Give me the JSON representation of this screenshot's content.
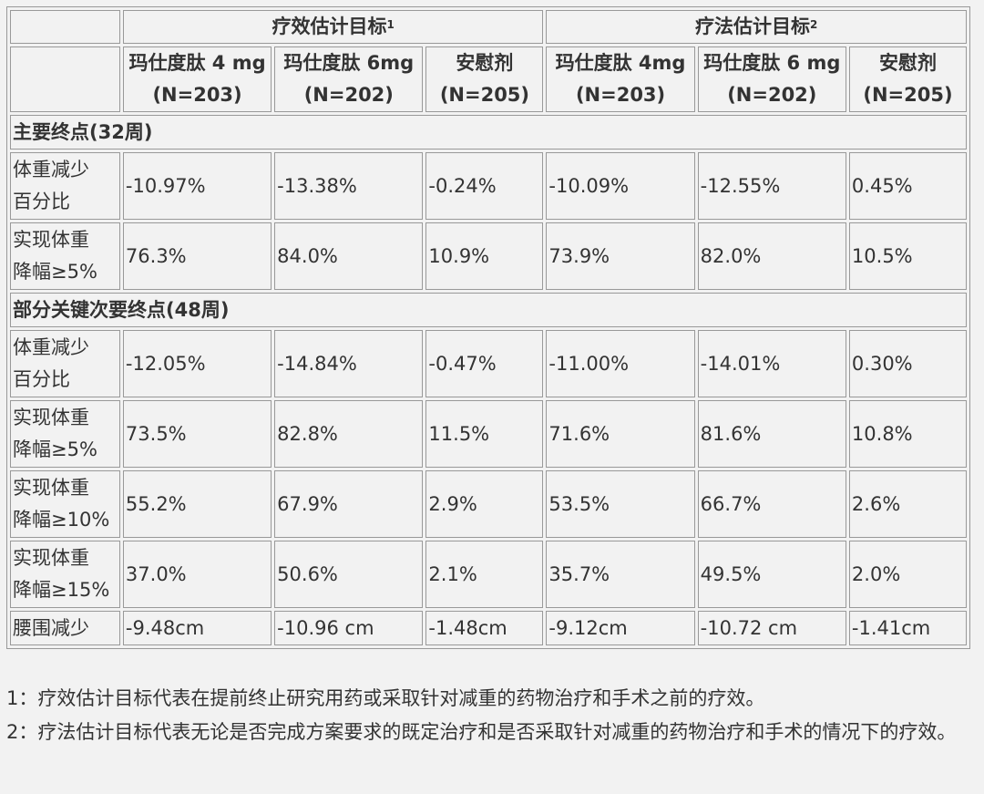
{
  "table": {
    "group_headers": [
      {
        "label": "疗效估计目标",
        "sup": "1"
      },
      {
        "label": "疗法估计目标",
        "sup": "2"
      }
    ],
    "column_headers": [
      {
        "line1": "玛仕度肽 4 mg",
        "line2": "(N=203)"
      },
      {
        "line1": "玛仕度肽 6mg",
        "line2": "(N=202)"
      },
      {
        "line1": "安慰剂",
        "line2": "(N=205)"
      },
      {
        "line1": "玛仕度肽 4mg",
        "line2": "(N=203)"
      },
      {
        "line1": "玛仕度肽 6 mg",
        "line2": "(N=202)"
      },
      {
        "line1": "安慰剂",
        "line2": "(N=205)"
      }
    ],
    "sections": [
      {
        "title": "主要终点(32周)",
        "rows": [
          {
            "label1": "体重减少",
            "label2": "百分比",
            "values": [
              "-10.97%",
              "-13.38%",
              "-0.24%",
              "-10.09%",
              "-12.55%",
              "0.45%"
            ]
          },
          {
            "label1": "实现体重",
            "label2": "降幅≥5%",
            "values": [
              "76.3%",
              "84.0%",
              "10.9%",
              "73.9%",
              "82.0%",
              "10.5%"
            ]
          }
        ]
      },
      {
        "title": "部分关键次要终点(48周)",
        "rows": [
          {
            "label1": "体重减少",
            "label2": "百分比",
            "values": [
              "-12.05%",
              "-14.84%",
              "-0.47%",
              "-11.00%",
              "-14.01%",
              "0.30%"
            ]
          },
          {
            "label1": "实现体重",
            "label2": "降幅≥5%",
            "values": [
              "73.5%",
              "82.8%",
              "11.5%",
              "71.6%",
              "81.6%",
              "10.8%"
            ]
          },
          {
            "label1": "实现体重",
            "label2": "降幅≥10%",
            "values": [
              "55.2%",
              "67.9%",
              "2.9%",
              "53.5%",
              "66.7%",
              "2.6%"
            ]
          },
          {
            "label1": "实现体重",
            "label2": "降幅≥15%",
            "values": [
              "37.0%",
              "50.6%",
              "2.1%",
              "35.7%",
              "49.5%",
              "2.0%"
            ]
          },
          {
            "label1": "腰围减少",
            "label2": "",
            "values": [
              "-9.48cm",
              "-10.96 cm",
              "-1.48cm",
              "-9.12cm",
              "-10.72 cm",
              "-1.41cm"
            ]
          }
        ]
      }
    ]
  },
  "notes": [
    "1：疗效估计目标代表在提前终止研究用药或采取针对减重的药物治疗和手术之前的疗效。",
    "2：疗法估计目标代表无论是否完成方案要求的既定治疗和是否采取针对减重的药物治疗和手术的情况下的疗效。"
  ],
  "colors": {
    "background": "#f2f2f2",
    "border": "#999999",
    "text": "#333333"
  }
}
